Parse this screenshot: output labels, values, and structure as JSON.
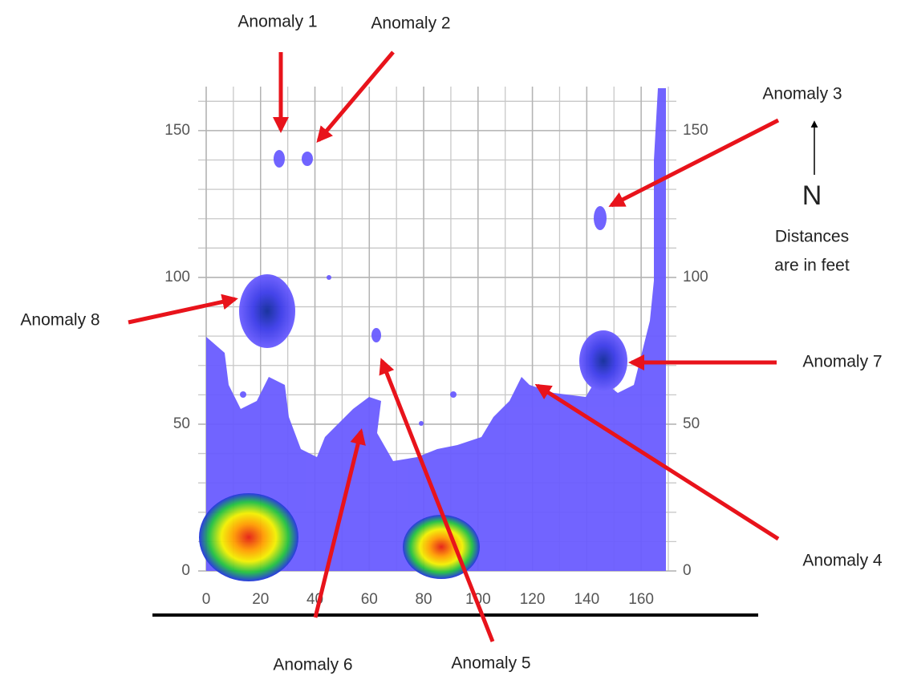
{
  "map": {
    "xlim": [
      0,
      170
    ],
    "ylim": [
      0,
      165
    ],
    "xticks": [
      0,
      20,
      40,
      60,
      80,
      100,
      120,
      140,
      160
    ],
    "yticks": [
      0,
      50,
      100,
      150
    ],
    "annotations": [
      "Anomaly 1",
      "Anomaly 2",
      "Anomaly 3",
      "Anomaly 4",
      "Anomaly 5",
      "Anomaly 6",
      "Anomaly 7",
      "Anomaly 8"
    ],
    "north": "N",
    "note": [
      "Distances",
      "are in feet"
    ]
  }
}
